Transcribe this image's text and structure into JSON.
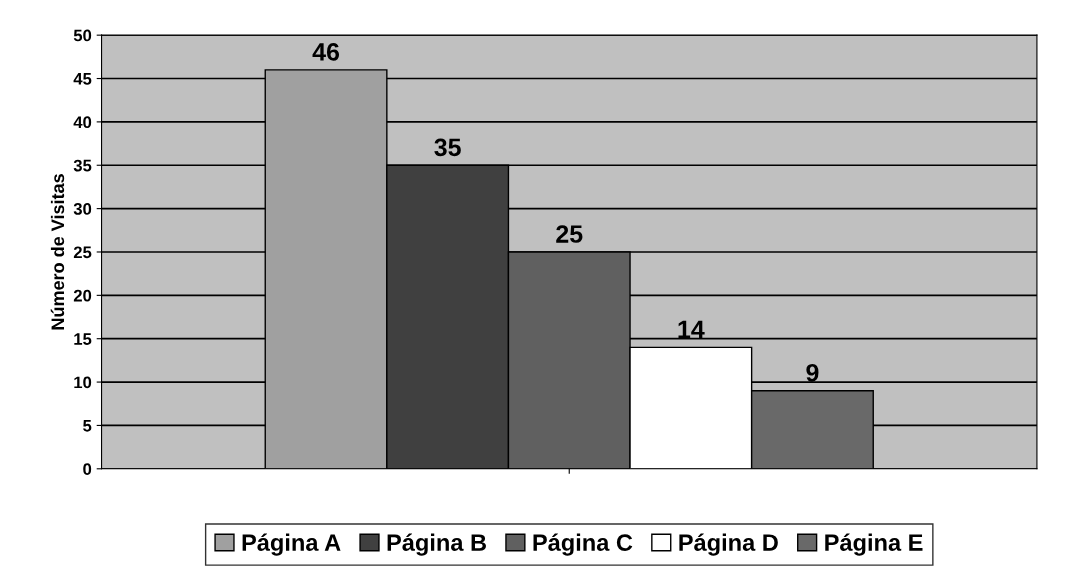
{
  "chart_data": {
    "type": "bar",
    "ylabel": "Número de Visitas",
    "categories": [
      null
    ],
    "series": [
      {
        "name": "Página A",
        "color": "#a0a0a0",
        "values": [
          46
        ]
      },
      {
        "name": "Página B",
        "color": "#404040",
        "values": [
          35
        ]
      },
      {
        "name": "Página C",
        "color": "#606060",
        "values": [
          25
        ]
      },
      {
        "name": "Página D",
        "color": "#ffffff",
        "values": [
          14
        ]
      },
      {
        "name": "Página E",
        "color": "#696969",
        "values": [
          9
        ]
      }
    ],
    "ylim": [
      0,
      50
    ],
    "yticks": [
      0,
      5,
      10,
      15,
      20,
      25,
      30,
      35,
      40,
      45,
      50
    ],
    "grid": "y",
    "legend": "bottom",
    "data_labels": true
  }
}
